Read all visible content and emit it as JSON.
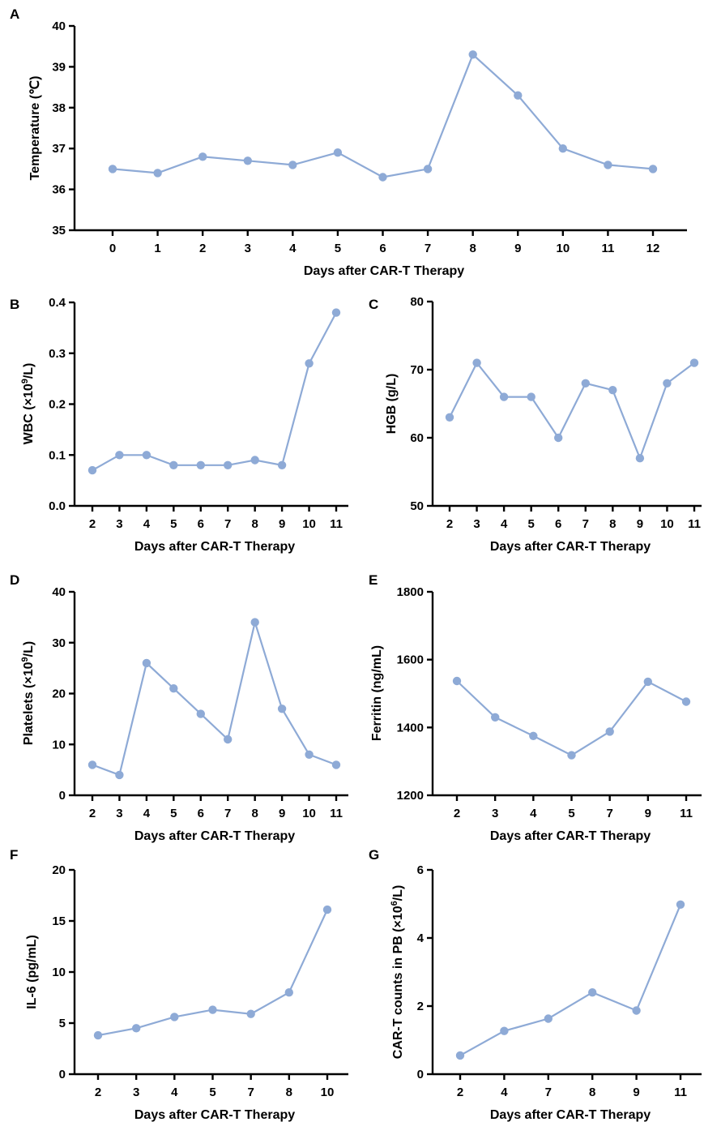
{
  "colors": {
    "series": "#8eaad6",
    "axis": "#000000"
  },
  "chart_data": [
    {
      "panel": "A",
      "type": "line",
      "xlabel": "Days after CAR-T Therapy",
      "ylabel": "Temperature (℃)",
      "categories": [
        "0",
        "1",
        "2",
        "3",
        "4",
        "5",
        "6",
        "7",
        "8",
        "9",
        "10",
        "11",
        "12"
      ],
      "values": [
        36.5,
        36.4,
        36.8,
        36.7,
        36.6,
        36.9,
        36.3,
        36.5,
        39.3,
        38.3,
        37.0,
        36.6,
        36.5
      ],
      "yticks": [
        "35",
        "36",
        "37",
        "38",
        "39",
        "40"
      ],
      "ylim": [
        35,
        40
      ],
      "grid": false
    },
    {
      "panel": "B",
      "type": "line",
      "xlabel": "Days after CAR-T Therapy",
      "ylabel": {
        "pre": "WBC (×10",
        "sup": "9",
        "post": "/L)"
      },
      "categories": [
        "2",
        "3",
        "4",
        "5",
        "6",
        "7",
        "8",
        "9",
        "10",
        "11"
      ],
      "values": [
        0.07,
        0.1,
        0.1,
        0.08,
        0.08,
        0.08,
        0.09,
        0.08,
        0.28,
        0.38
      ],
      "yticks": [
        "0.0",
        "0.1",
        "0.2",
        "0.3",
        "0.4"
      ],
      "ylim": [
        0,
        0.4
      ],
      "grid": false
    },
    {
      "panel": "C",
      "type": "line",
      "xlabel": "Days after CAR-T Therapy",
      "ylabel": "HGB (g/L)",
      "categories": [
        "2",
        "3",
        "4",
        "5",
        "6",
        "7",
        "8",
        "9",
        "10",
        "11"
      ],
      "values": [
        63,
        71,
        66,
        66,
        60,
        68,
        67,
        57,
        68,
        71
      ],
      "yticks": [
        "50",
        "60",
        "70",
        "80"
      ],
      "ylim": [
        50,
        80
      ],
      "grid": false
    },
    {
      "panel": "D",
      "type": "line",
      "xlabel": "Days after CAR-T Therapy",
      "ylabel": {
        "pre": "Platelets (×10",
        "sup": "9",
        "post": "/L)"
      },
      "categories": [
        "2",
        "3",
        "4",
        "5",
        "6",
        "7",
        "8",
        "9",
        "10",
        "11"
      ],
      "values": [
        6,
        4,
        26,
        21,
        16,
        11,
        34,
        17,
        8,
        6
      ],
      "yticks": [
        "0",
        "10",
        "20",
        "30",
        "40"
      ],
      "ylim": [
        0,
        40
      ],
      "grid": false
    },
    {
      "panel": "E",
      "type": "line",
      "xlabel": "Days after CAR-T Therapy",
      "ylabel": "Ferritin (ng/mL)",
      "categories": [
        "2",
        "3",
        "4",
        "5",
        "7",
        "9",
        "11"
      ],
      "values": [
        1537,
        1430,
        1375,
        1318,
        1388,
        1535,
        1476
      ],
      "yticks": [
        "1200",
        "1400",
        "1600",
        "1800"
      ],
      "ylim": [
        1200,
        1800
      ],
      "grid": false
    },
    {
      "panel": "F",
      "type": "line",
      "xlabel": "Days after CAR-T Therapy",
      "ylabel": "IL-6 (pg/mL)",
      "categories": [
        "2",
        "3",
        "4",
        "5",
        "7",
        "8",
        "10"
      ],
      "values": [
        3.8,
        4.5,
        5.6,
        6.3,
        5.9,
        8.0,
        16.1
      ],
      "yticks": [
        "0",
        "5",
        "10",
        "15",
        "20"
      ],
      "ylim": [
        0,
        20
      ],
      "grid": false
    },
    {
      "panel": "G",
      "type": "line",
      "xlabel": "Days after CAR-T Therapy",
      "ylabel": {
        "pre": "CAR-T counts in PB (×10",
        "sup": "6",
        "post": "/L)"
      },
      "categories": [
        "2",
        "4",
        "7",
        "8",
        "9",
        "11"
      ],
      "values": [
        0.55,
        1.27,
        1.63,
        2.4,
        1.87,
        4.98
      ],
      "yticks": [
        "0",
        "2",
        "4",
        "6"
      ],
      "ylim": [
        0,
        6
      ],
      "grid": false
    }
  ]
}
